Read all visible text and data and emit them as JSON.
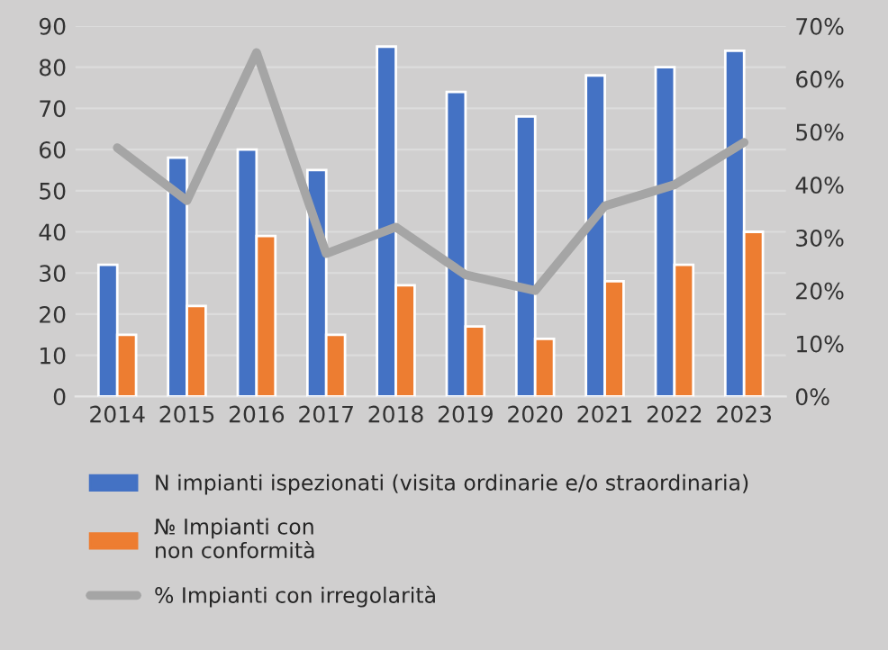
{
  "chart_data": {
    "type": "bar",
    "categories": [
      "2014",
      "2015",
      "2016",
      "2017",
      "2018",
      "2019",
      "2020",
      "2021",
      "2022",
      "2023"
    ],
    "series": [
      {
        "name": "N impianti ispezionati (visita ordinarie e/o straordinaria)",
        "color": "#4472c4",
        "values": [
          32,
          58,
          60,
          55,
          85,
          74,
          68,
          78,
          80,
          84
        ]
      },
      {
        "name": "№ Impianti con\nnon conformità",
        "color": "#ed7d31",
        "values": [
          15,
          22,
          39,
          15,
          27,
          17,
          14,
          28,
          32,
          40
        ]
      },
      {
        "name": "% Impianti con irregolarità",
        "type": "line",
        "axis": "y2",
        "color": "#a5a5a5",
        "values": [
          47,
          37,
          65,
          27,
          32,
          23,
          20,
          36,
          40,
          48
        ]
      }
    ],
    "ylim": [
      0,
      90
    ],
    "yticks": [
      0,
      10,
      20,
      30,
      40,
      50,
      60,
      70,
      80,
      90
    ],
    "y2lim": [
      0,
      70
    ],
    "y2ticks": [
      {
        "value": 0,
        "label": "0%"
      },
      {
        "value": 10,
        "label": "10%"
      },
      {
        "value": 20,
        "label": "20%"
      },
      {
        "value": 30,
        "label": "30%"
      },
      {
        "value": 40,
        "label": "40%"
      },
      {
        "value": 50,
        "label": "50%"
      },
      {
        "value": 60,
        "label": "60%"
      },
      {
        "value": 70,
        "label": "70%"
      }
    ],
    "grid": "y",
    "legend": "bottom"
  }
}
